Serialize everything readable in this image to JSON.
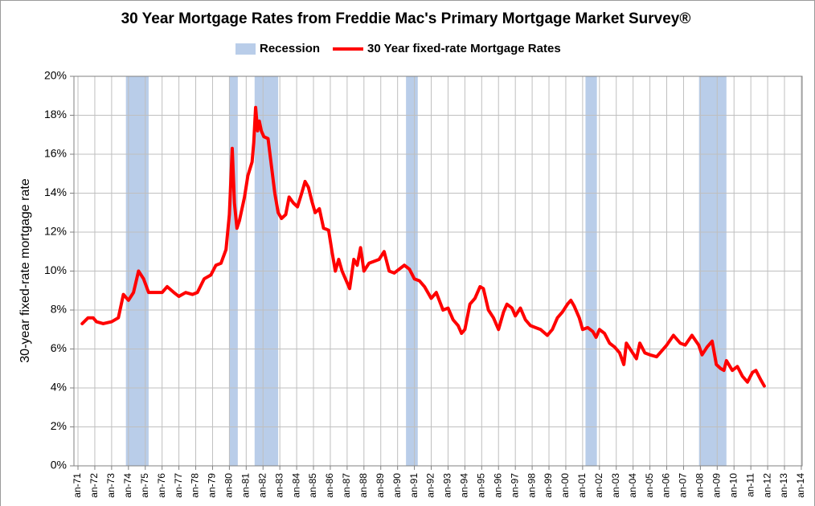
{
  "chart_data": {
    "type": "line",
    "title": "30 Year Mortgage Rates from Freddie Mac's Primary Mortgage Market Survey®",
    "ylabel": "30-year fixed-rate mortgage rate",
    "legend": "top",
    "grid": true,
    "xlim": [
      1970.76,
      2014.05
    ],
    "ylim": [
      0,
      20
    ],
    "yticks": [
      {
        "value": 0,
        "label": "0%"
      },
      {
        "value": 2,
        "label": "2%"
      },
      {
        "value": 4,
        "label": "4%"
      },
      {
        "value": 6,
        "label": "6%"
      },
      {
        "value": 8,
        "label": "8%"
      },
      {
        "value": 10,
        "label": "10%"
      },
      {
        "value": 12,
        "label": "12%"
      },
      {
        "value": 14,
        "label": "14%"
      },
      {
        "value": 16,
        "label": "16%"
      },
      {
        "value": 18,
        "label": "18%"
      },
      {
        "value": 20,
        "label": "20%"
      }
    ],
    "xticks": [
      {
        "value": 1971,
        "label": "an-71"
      },
      {
        "value": 1972,
        "label": "an-72"
      },
      {
        "value": 1973,
        "label": "an-73"
      },
      {
        "value": 1974,
        "label": "an-74"
      },
      {
        "value": 1975,
        "label": "an-75"
      },
      {
        "value": 1976,
        "label": "an-76"
      },
      {
        "value": 1977,
        "label": "an-77"
      },
      {
        "value": 1978,
        "label": "an-78"
      },
      {
        "value": 1979,
        "label": "an-79"
      },
      {
        "value": 1980,
        "label": "an-80"
      },
      {
        "value": 1981,
        "label": "an-81"
      },
      {
        "value": 1982,
        "label": "an-82"
      },
      {
        "value": 1983,
        "label": "an-83"
      },
      {
        "value": 1984,
        "label": "an-84"
      },
      {
        "value": 1985,
        "label": "an-85"
      },
      {
        "value": 1986,
        "label": "an-86"
      },
      {
        "value": 1987,
        "label": "an-87"
      },
      {
        "value": 1988,
        "label": "an-88"
      },
      {
        "value": 1989,
        "label": "an-89"
      },
      {
        "value": 1990,
        "label": "an-90"
      },
      {
        "value": 1991,
        "label": "an-91"
      },
      {
        "value": 1992,
        "label": "an-92"
      },
      {
        "value": 1993,
        "label": "an-93"
      },
      {
        "value": 1994,
        "label": "an-94"
      },
      {
        "value": 1995,
        "label": "an-95"
      },
      {
        "value": 1996,
        "label": "an-96"
      },
      {
        "value": 1997,
        "label": "an-97"
      },
      {
        "value": 1998,
        "label": "an-98"
      },
      {
        "value": 1999,
        "label": "an-99"
      },
      {
        "value": 2000,
        "label": "an-00"
      },
      {
        "value": 2001,
        "label": "an-01"
      },
      {
        "value": 2002,
        "label": "an-02"
      },
      {
        "value": 2003,
        "label": "an-03"
      },
      {
        "value": 2004,
        "label": "an-04"
      },
      {
        "value": 2005,
        "label": "an-05"
      },
      {
        "value": 2006,
        "label": "an-06"
      },
      {
        "value": 2007,
        "label": "an-07"
      },
      {
        "value": 2008,
        "label": "an-08"
      },
      {
        "value": 2009,
        "label": "an-09"
      },
      {
        "value": 2010,
        "label": "an-10"
      },
      {
        "value": 2011,
        "label": "an-11"
      },
      {
        "value": 2012,
        "label": "an-12"
      },
      {
        "value": 2013,
        "label": "an-13"
      },
      {
        "value": 2014,
        "label": "an-14"
      }
    ],
    "recessions": {
      "name": "Recession",
      "color": "#b9cde9",
      "ranges": [
        [
          1973.85,
          1975.2
        ],
        [
          1980.0,
          1980.5
        ],
        [
          1981.5,
          1982.9
        ],
        [
          1990.5,
          1991.2
        ],
        [
          2001.17,
          2001.85
        ],
        [
          2007.92,
          2009.55
        ]
      ]
    },
    "x": [
      1971.25,
      1971.6,
      1971.9,
      1972.1,
      1972.5,
      1973.0,
      1973.4,
      1973.7,
      1974.0,
      1974.3,
      1974.6,
      1974.9,
      1975.2,
      1975.6,
      1976.0,
      1976.3,
      1976.7,
      1977.0,
      1977.4,
      1977.8,
      1978.1,
      1978.5,
      1978.9,
      1979.2,
      1979.5,
      1979.8,
      1980.0,
      1980.17,
      1980.3,
      1980.45,
      1980.6,
      1980.9,
      1981.1,
      1981.35,
      1981.45,
      1981.56,
      1981.68,
      1981.78,
      1981.9,
      1982.05,
      1982.3,
      1982.5,
      1982.7,
      1982.9,
      1983.1,
      1983.35,
      1983.55,
      1983.8,
      1984.05,
      1984.3,
      1984.5,
      1984.7,
      1984.9,
      1985.1,
      1985.35,
      1985.6,
      1985.9,
      1986.1,
      1986.3,
      1986.5,
      1986.7,
      1986.95,
      1987.15,
      1987.4,
      1987.6,
      1987.8,
      1988.0,
      1988.3,
      1988.6,
      1988.9,
      1989.2,
      1989.5,
      1989.8,
      1990.1,
      1990.4,
      1990.7,
      1991.0,
      1991.3,
      1991.6,
      1992.0,
      1992.3,
      1992.7,
      1993.0,
      1993.3,
      1993.6,
      1993.8,
      1994.0,
      1994.3,
      1994.6,
      1994.9,
      1995.1,
      1995.4,
      1995.7,
      1996.0,
      1996.3,
      1996.5,
      1996.8,
      1997.0,
      1997.3,
      1997.6,
      1997.9,
      1998.2,
      1998.5,
      1998.9,
      1999.2,
      1999.5,
      1999.8,
      2000.1,
      2000.3,
      2000.5,
      2000.8,
      2001.0,
      2001.3,
      2001.6,
      2001.8,
      2002.0,
      2002.3,
      2002.6,
      2002.9,
      2003.2,
      2003.45,
      2003.6,
      2003.9,
      2004.2,
      2004.4,
      2004.7,
      2005.0,
      2005.4,
      2005.7,
      2006.0,
      2006.4,
      2006.8,
      2007.1,
      2007.5,
      2007.9,
      2008.1,
      2008.4,
      2008.7,
      2008.95,
      2009.2,
      2009.4,
      2009.55,
      2009.9,
      2010.2,
      2010.5,
      2010.8,
      2011.1,
      2011.3,
      2011.6,
      2011.8
    ],
    "series": [
      {
        "name": "30 Year fixed-rate Mortgage Rates",
        "color": "#ff0000",
        "values": [
          7.3,
          7.6,
          7.6,
          7.4,
          7.3,
          7.4,
          7.6,
          8.8,
          8.5,
          8.9,
          10.0,
          9.6,
          8.9,
          8.9,
          8.9,
          9.2,
          8.9,
          8.7,
          8.9,
          8.8,
          8.9,
          9.6,
          9.8,
          10.3,
          10.4,
          11.1,
          12.9,
          16.3,
          13.5,
          12.2,
          12.6,
          13.8,
          14.9,
          15.6,
          16.6,
          18.4,
          17.2,
          17.7,
          17.2,
          16.9,
          16.8,
          15.4,
          14.0,
          13.0,
          12.7,
          12.9,
          13.8,
          13.5,
          13.3,
          14.0,
          14.6,
          14.3,
          13.6,
          13.0,
          13.2,
          12.2,
          12.1,
          11.0,
          10.0,
          10.6,
          10.0,
          9.5,
          9.1,
          10.6,
          10.3,
          11.2,
          10.0,
          10.4,
          10.5,
          10.6,
          11.0,
          10.0,
          9.9,
          10.1,
          10.3,
          10.1,
          9.6,
          9.5,
          9.2,
          8.6,
          8.9,
          8.0,
          8.1,
          7.5,
          7.2,
          6.8,
          7.0,
          8.3,
          8.6,
          9.2,
          9.1,
          8.0,
          7.6,
          7.0,
          7.9,
          8.3,
          8.1,
          7.7,
          8.1,
          7.5,
          7.2,
          7.1,
          7.0,
          6.7,
          7.0,
          7.6,
          7.9,
          8.3,
          8.5,
          8.2,
          7.6,
          7.0,
          7.1,
          6.9,
          6.6,
          7.0,
          6.8,
          6.3,
          6.1,
          5.8,
          5.2,
          6.3,
          5.9,
          5.5,
          6.3,
          5.8,
          5.7,
          5.6,
          5.9,
          6.2,
          6.7,
          6.3,
          6.2,
          6.7,
          6.2,
          5.7,
          6.1,
          6.4,
          5.2,
          5.0,
          4.9,
          5.4,
          4.9,
          5.1,
          4.6,
          4.3,
          4.8,
          4.9,
          4.4,
          4.1
        ]
      }
    ]
  }
}
